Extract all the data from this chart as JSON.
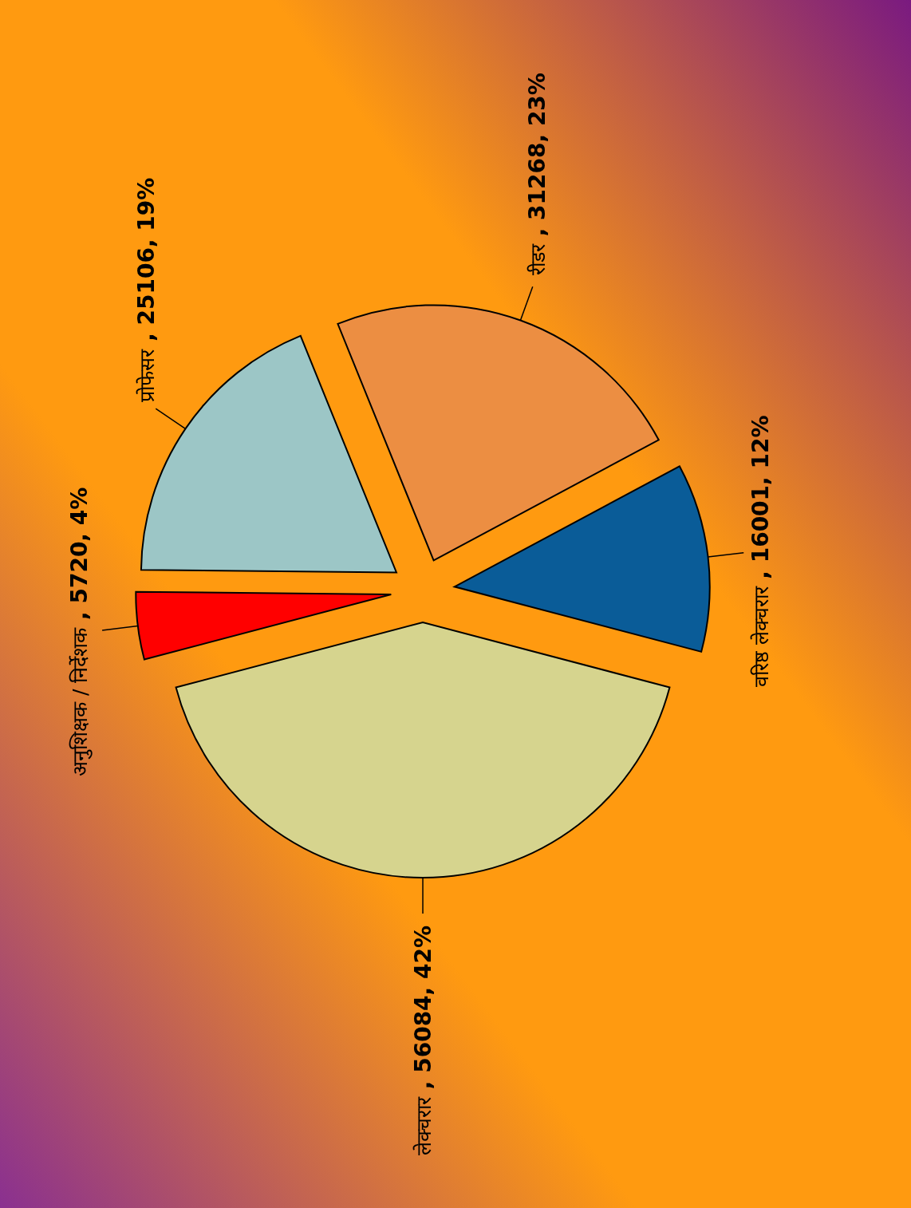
{
  "chart_data": {
    "type": "pie",
    "categories": [
      "लेक्चरार",
      "अनुशिक्षक / निर्देशक",
      "प्रोफेसर",
      "रीडर",
      "वरिष्ठ लेक्चरार"
    ],
    "values": [
      56084,
      5720,
      25106,
      31268,
      16001
    ],
    "value_labels": [
      ", 56084, 42%",
      ", 5720, 4%",
      ", 25106, 19%",
      ", 31268, 23%",
      ", 16001, 12%"
    ],
    "colors": [
      "#d6d48e",
      "#ff0000",
      "#9cc6c6",
      "#ec8e42",
      "#0a5c98"
    ],
    "legend": false
  }
}
